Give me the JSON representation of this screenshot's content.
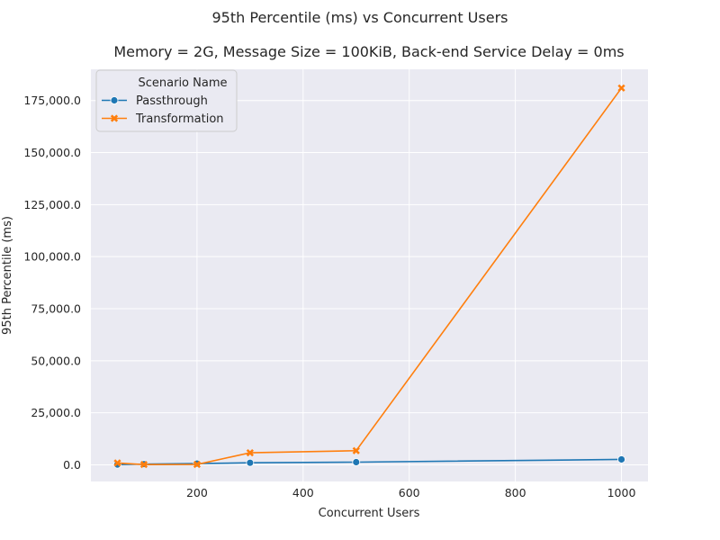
{
  "chart_data": {
    "type": "line",
    "title": "95th Percentile (ms) vs Concurrent Users",
    "subtitle": "Memory = 2G, Message Size = 100KiB, Back-end Service Delay = 0ms",
    "xlabel": "Concurrent Users",
    "ylabel": "95th Percentile (ms)",
    "xlim": [
      0,
      1050
    ],
    "ylim": [
      -8000,
      190000
    ],
    "xticks": [
      200,
      400,
      600,
      800,
      1000
    ],
    "xtick_labels": [
      "200",
      "400",
      "600",
      "800",
      "1000"
    ],
    "yticks": [
      0,
      25000,
      50000,
      75000,
      100000,
      125000,
      150000,
      175000
    ],
    "ytick_labels": [
      "0.0",
      "25,000.0",
      "50,000.0",
      "75,000.0",
      "100,000.0",
      "125,000.0",
      "150,000.0",
      "175,000.0"
    ],
    "grid": true,
    "legend_title": "Scenario Name",
    "legend_position": "top-left",
    "series": [
      {
        "name": "Passthrough",
        "color": "#1f77b4",
        "marker": "circle",
        "x": [
          50,
          100,
          200,
          300,
          500,
          1000
        ],
        "y": [
          150,
          350,
          600,
          1000,
          1300,
          2600
        ]
      },
      {
        "name": "Transformation",
        "color": "#ff7f0e",
        "marker": "x",
        "x": [
          50,
          100,
          200,
          300,
          500,
          1000
        ],
        "y": [
          900,
          150,
          200,
          5800,
          6800,
          181000
        ]
      }
    ]
  }
}
